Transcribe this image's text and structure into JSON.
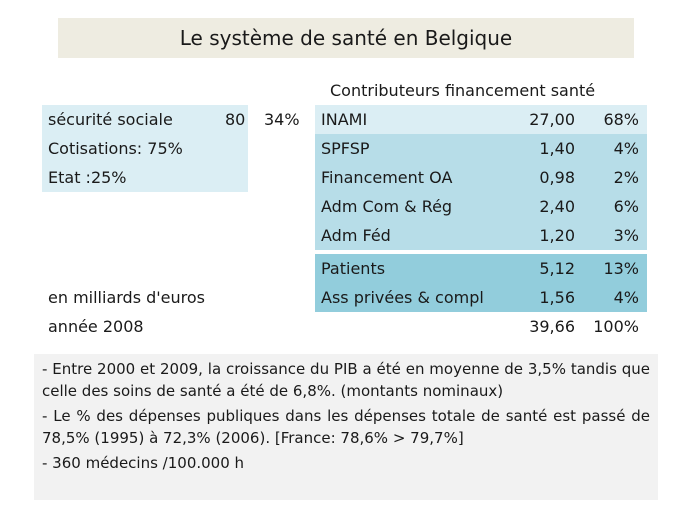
{
  "title": "Le système de santé en Belgique",
  "left": {
    "row1_label": "sécurité sociale",
    "row1_value": "80",
    "row1_pct": "34%",
    "row2": "Cotisations: 75%",
    "row3": "Etat :25%",
    "unit": "en milliards d'euros",
    "year": "année 2008"
  },
  "contributors": {
    "title": "Contributeurs financement santé",
    "rows": [
      {
        "label": "INAMI",
        "amount": "27,00",
        "pct": "68%",
        "shade": "light"
      },
      {
        "label": "SPFSP",
        "amount": "1,40",
        "pct": "4%",
        "shade": "mid"
      },
      {
        "label": "Financement OA",
        "amount": "0,98",
        "pct": "2%",
        "shade": "mid"
      },
      {
        "label": "Adm Com & Rég",
        "amount": "2,40",
        "pct": "6%",
        "shade": "mid"
      },
      {
        "label": "Adm Féd",
        "amount": "1,20",
        "pct": "3%",
        "shade": "mid"
      },
      {
        "label": "Patients",
        "amount": "5,12",
        "pct": "13%",
        "shade": "dark"
      },
      {
        "label": "Ass privées & compl",
        "amount": "1,56",
        "pct": "4%",
        "shade": "dark"
      }
    ],
    "total_amount": "39,66",
    "total_pct": "100%"
  },
  "notes": [
    "- Entre 2000 et 2009, la croissance du PIB  a été  en moyenne de 3,5% tandis que celle des soins de santé a été de 6,8%. (montants nominaux)",
    "- Le % des dépenses publiques dans les dépenses totale de santé est passé de 78,5% (1995) à 72,3% (2006). [France: 78,6%  > 79,7%]",
    "- 360 médecins /100.000 h"
  ]
}
